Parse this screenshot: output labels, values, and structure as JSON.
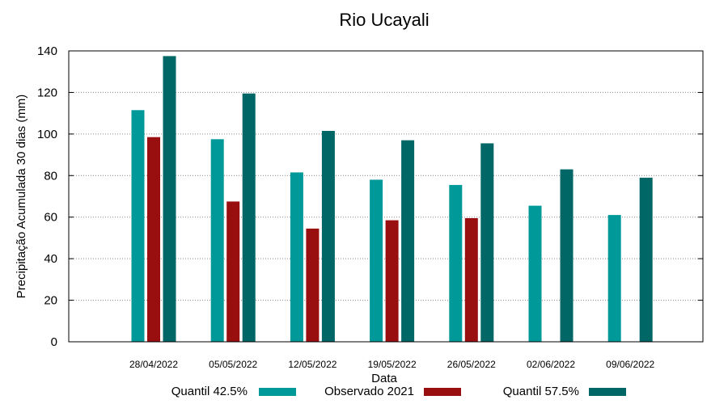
{
  "chart_data": {
    "type": "bar",
    "title": "Rio Ucayali",
    "xlabel": "Data",
    "ylabel": "Precipitação Acumulada 30 dias (mm)",
    "ylim": [
      0,
      140
    ],
    "yticks": [
      0,
      20,
      40,
      60,
      80,
      100,
      120,
      140
    ],
    "grid": true,
    "legend_position": "bottom",
    "categories": [
      "28/04/2022",
      "05/05/2022",
      "12/05/2022",
      "19/05/2022",
      "26/05/2022",
      "02/06/2022",
      "09/06/2022"
    ],
    "series": [
      {
        "name": "Quantil 42.5%",
        "color": "#009999",
        "values": [
          111.5,
          97.5,
          81.5,
          78,
          75.5,
          65.5,
          61
        ]
      },
      {
        "name": "Observado 2021",
        "color": "#990f0f",
        "values": [
          98.5,
          67.5,
          54.5,
          58.5,
          59.5,
          null,
          null
        ]
      },
      {
        "name": "Quantil 57.5%",
        "color": "#006666",
        "values": [
          137.5,
          119.5,
          101.5,
          97,
          95.5,
          83,
          79
        ]
      }
    ]
  }
}
